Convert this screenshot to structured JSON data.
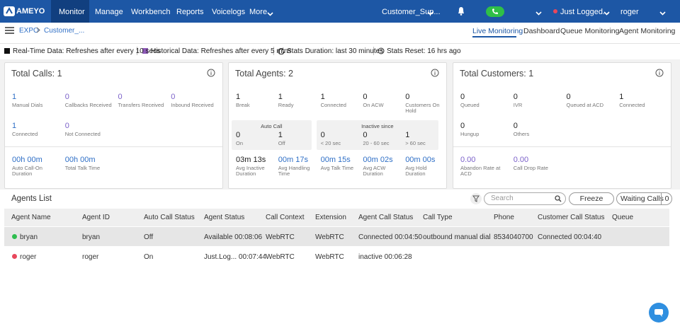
{
  "nav": {
    "logo": "AMEYO",
    "menu": [
      "Monitor",
      "Manage",
      "Workbench",
      "Reports",
      "Voicelogs",
      "More"
    ],
    "campaign": "Customer_Sup...",
    "status": "Just Logged...",
    "user": "roger"
  },
  "subnav": {
    "breadcrumb": [
      "EXPO",
      "Customer_..."
    ],
    "tabs": [
      "Live Monitoring",
      "Dashboard",
      "Queue Monitoring",
      "Agent Monitoring"
    ]
  },
  "info_bar": [
    "Real-Time Data: Refreshes after every 10 secs",
    "Historical Data: Refreshes after every 5 mins",
    "Stats Duration: last 30 minutes",
    "Stats Reset: 16 hrs ago"
  ],
  "panels": [
    {
      "title": "Total Calls: 1",
      "rows": [
        [
          {
            "value": "1",
            "label": "Manual Dials",
            "color": "#2f6fc6"
          },
          {
            "value": "0",
            "label": "Callbacks Received",
            "color": "#7b61c9"
          },
          {
            "value": "0",
            "label": "Transfers Received",
            "color": "#7b61c9"
          },
          {
            "value": "0",
            "label": "Inbound Received",
            "color": "#7b61c9"
          }
        ],
        [
          {
            "value": "1",
            "label": "Connected",
            "color": "#2f6fc6"
          },
          {
            "value": "0",
            "label": "Not Connected",
            "color": "#7b61c9"
          }
        ],
        [
          {
            "value": "00h 00m",
            "label": "Auto Call-On Duration",
            "color": "#2f6fc6"
          },
          {
            "value": "00h 00m",
            "label": "Total Talk Time",
            "color": "#2f6fc6"
          }
        ]
      ]
    },
    {
      "title": "Total Agents: 2",
      "rows": [
        [
          {
            "value": "1",
            "label": "Break",
            "color": "#222"
          },
          {
            "value": "1",
            "label": "Ready",
            "color": "#222"
          },
          {
            "value": "1",
            "label": "Connected",
            "color": "#222"
          },
          {
            "value": "0",
            "label": "On ACW",
            "color": "#222"
          },
          {
            "value": "0",
            "label": "Customers On Hold",
            "color": "#222"
          }
        ],
        [
          {
            "group": "Auto Call",
            "items": [
              {
                "value": "0",
                "label": "On",
                "color": "#222"
              },
              {
                "value": "1",
                "label": "Off",
                "color": "#222"
              }
            ]
          },
          {
            "group": "Inactive since",
            "items": [
              {
                "value": "0",
                "label": "< 20 sec",
                "color": "#222"
              },
              {
                "value": "0",
                "label": "20 - 60 sec",
                "color": "#222"
              },
              {
                "value": "1",
                "label": "> 60 sec",
                "color": "#222"
              }
            ]
          }
        ],
        [
          {
            "value": "03m 13s",
            "label": "Avg Inactive Duration",
            "color": "#222"
          },
          {
            "value": "00m 17s",
            "label": "Avg Handling Time",
            "color": "#2f6fc6"
          },
          {
            "value": "00m 15s",
            "label": "Avg Talk Time",
            "color": "#2f6fc6"
          },
          {
            "value": "00m 02s",
            "label": "Avg ACW Duration",
            "color": "#2f6fc6"
          },
          {
            "value": "00m 00s",
            "label": "Avg Hold Duration",
            "color": "#2f6fc6"
          }
        ]
      ]
    },
    {
      "title": "Total Customers: 1",
      "rows": [
        [
          {
            "value": "0",
            "label": "Queued",
            "color": "#222"
          },
          {
            "value": "0",
            "label": "IVR",
            "color": "#222"
          },
          {
            "value": "0",
            "label": "Queued at ACD",
            "color": "#222"
          },
          {
            "value": "1",
            "label": "Connected",
            "color": "#222"
          }
        ],
        [
          {
            "value": "0",
            "label": "Hungup",
            "color": "#222"
          },
          {
            "value": "0",
            "label": "Others",
            "color": "#222"
          }
        ],
        [
          {
            "value": "0.00",
            "label": "Abandon Rate at ACD",
            "color": "#7b61c9"
          },
          {
            "value": "0.00",
            "label": "Call Drop Rate",
            "color": "#7b61c9"
          }
        ]
      ]
    }
  ],
  "agents": {
    "title": "Agents List",
    "search_placeholder": "Search",
    "freeze": "Freeze",
    "waiting_calls": "Waiting Calls",
    "waiting_count": "0",
    "columns": [
      "Agent Name",
      "Agent ID",
      "Auto Call Status",
      "Agent Status",
      "Call Context",
      "Extension",
      "Agent Call Status",
      "Call Type",
      "Phone",
      "Customer Call Status",
      "Queue"
    ],
    "rows": [
      {
        "dot": "#2dbd4e",
        "cells": [
          "bryan",
          "bryan",
          "Off",
          "Available 00:08:06",
          "WebRTC",
          "WebRTC",
          "Connected 00:04:50",
          "outbound manual dial",
          "8534040700",
          "Connected 00:04:40"
        ]
      },
      {
        "dot": "#e8475c",
        "cells": [
          "roger",
          "roger",
          "On",
          "Just.Log... 00:07:44",
          "WebRTC",
          "WebRTC",
          "inactive 00:06:28"
        ]
      }
    ]
  }
}
